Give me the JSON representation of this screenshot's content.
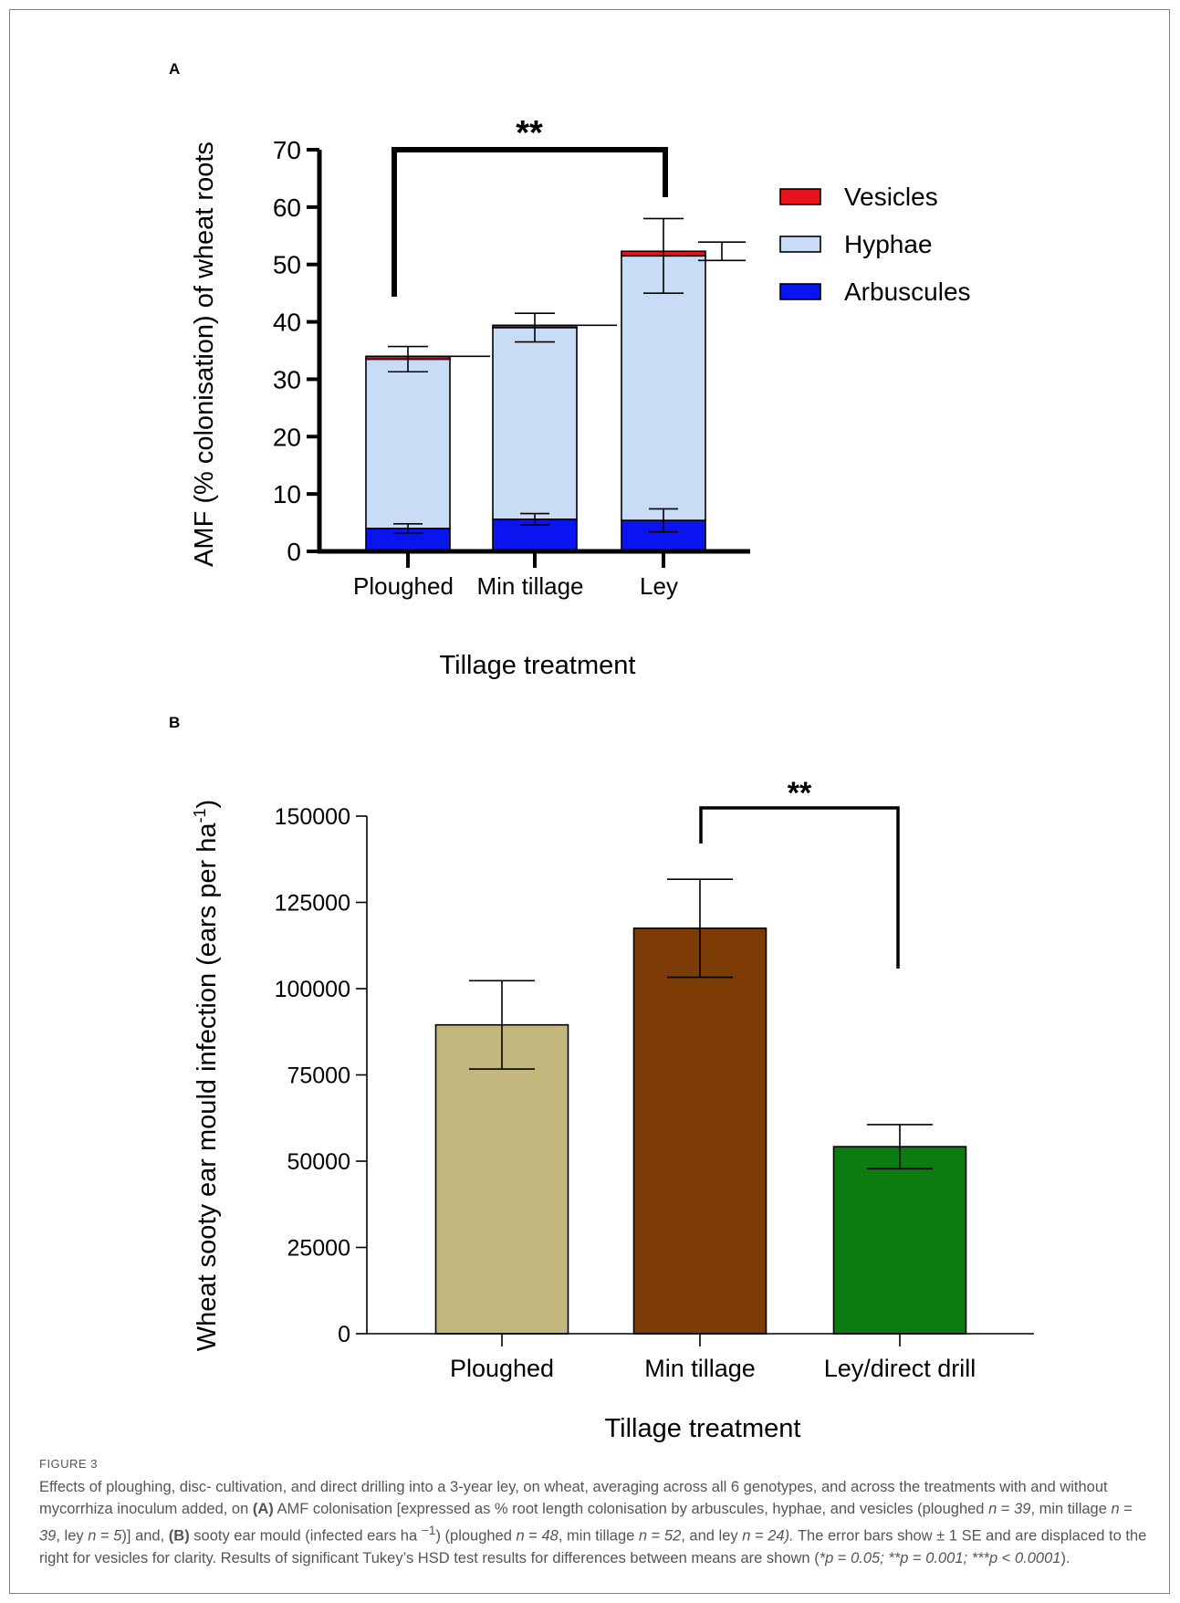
{
  "figure_label": "FIGURE 3",
  "caption_html": "Effects of ploughing, disc- cultivation, and direct drilling into a 3-year ley, on wheat, averaging across all 6 genotypes, and across the treatments with and without mycorrhiza inoculum added, on <b>(A)</b> AMF colonisation [expressed as % root length colonisation by arbuscules, hyphae, and vesicles (ploughed <i>n</i> = <i>39</i>, min tillage <i>n</i> = <i>39</i>, ley <i>n</i> = <i>5</i>)] and, <b>(B)</b> sooty ear mould (infected ears ha <sup>−1</sup>) (ploughed <i>n</i> = <i>48</i>, min tillage <i>n</i> = <i>52</i>, and ley <i>n</i> = <i>24).</i> The error bars show ± 1 SE and are displaced to the right for vesicles for clarity. Results of significant Tukey’s HSD test results for differences between means are shown (<i>*p</i> = <i>0.05; **p</i> = <i>0.001; ***p</i> &lt; <i>0.0001</i>).",
  "chart_data": [
    {
      "panel": "A",
      "type": "bar",
      "stacked": true,
      "categories": [
        "Ploughed",
        "Min tillage",
        "Ley"
      ],
      "series": [
        {
          "name": "Arbuscules",
          "color": "#0a14f0",
          "values": [
            4,
            5.6,
            5.4
          ],
          "se": [
            0.8,
            1.0,
            2.0
          ]
        },
        {
          "name": "Hyphae",
          "color": "#c9dcf5",
          "values": [
            29.5,
            33.4,
            46.1
          ],
          "se": [
            2.2,
            2.5,
            6.5
          ]
        },
        {
          "name": "Vesicles",
          "color": "#e8141b",
          "values": [
            0.5,
            0.4,
            0.8
          ],
          "se": [
            0.0,
            0.0,
            1.6
          ]
        }
      ],
      "yticks": [
        "0",
        "10",
        "20",
        "30",
        "40",
        "50",
        "60",
        "70"
      ],
      "ylim": [
        0,
        70
      ],
      "xlabel": "Tillage treatment",
      "ylabel": "AMF (% colonisation) of wheat roots",
      "legend": "right",
      "annotation": {
        "text": "**",
        "between": [
          "Ploughed",
          "Ley"
        ]
      }
    },
    {
      "panel": "B",
      "type": "bar",
      "categories": [
        "Ploughed",
        "Min tillage",
        "Ley/direct drill"
      ],
      "values": [
        89500,
        117500,
        54200
      ],
      "errors": [
        12800,
        14200,
        6400
      ],
      "colors": [
        "#c2b77c",
        "#7d3c05",
        "#0c7c10"
      ],
      "yticks": [
        "0",
        "25000",
        "50000",
        "75000",
        "100000",
        "125000",
        "150000"
      ],
      "ylim": [
        0,
        150000
      ],
      "xlabel": "Tillage treatment",
      "ylabel": "Wheat sooty ear mould infection (ears per ha",
      "ylabel_sup": "-1",
      "ylabel_close": ")",
      "annotation": {
        "text": "**",
        "between": [
          "Min tillage",
          "Ley/direct drill"
        ]
      }
    }
  ]
}
